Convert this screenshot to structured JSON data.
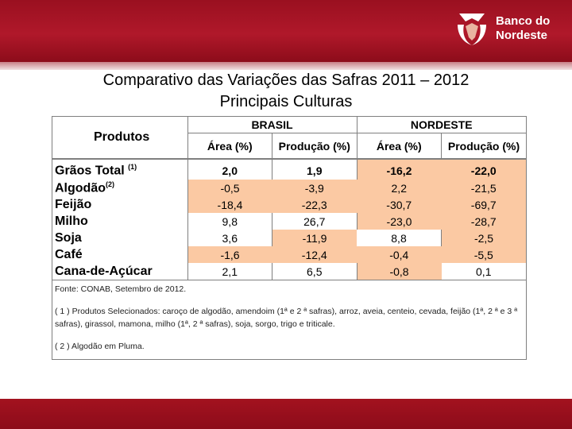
{
  "brand": {
    "name_line1": "Banco do",
    "name_line2": "Nordeste",
    "logo_color": "#ffffff"
  },
  "colors": {
    "header_red": "#a3121f",
    "highlight": "#fbc9a3"
  },
  "title_line1": "Comparativo das Variações das Safras 2011 – 2012",
  "title_line2": "Principais Culturas",
  "table": {
    "col_produtos": "Produtos",
    "group_brasil": "BRASIL",
    "group_nordeste": "NORDESTE",
    "sub_area": "Área (%)",
    "sub_producao": "Produção (%)",
    "rows": [
      {
        "label": "Grãos Total",
        "sup": "(1)",
        "br_area": "2,0",
        "br_prod": "1,9",
        "ne_area": "-16,2",
        "ne_prod": "-22,0"
      },
      {
        "label": "Algodão",
        "sup": "(2)",
        "br_area": "-0,5",
        "br_prod": "-3,9",
        "ne_area": "2,2",
        "ne_prod": "-21,5"
      },
      {
        "label": "Feijão",
        "sup": "",
        "br_area": "-18,4",
        "br_prod": "-22,3",
        "ne_area": "-30,7",
        "ne_prod": "-69,7"
      },
      {
        "label": "Milho",
        "sup": "",
        "br_area": "9,8",
        "br_prod": "26,7",
        "ne_area": "-23,0",
        "ne_prod": "-28,7"
      },
      {
        "label": "Soja",
        "sup": "",
        "br_area": "3,6",
        "br_prod": "-11,9",
        "ne_area": "8,8",
        "ne_prod": "-2,5"
      },
      {
        "label": "Café",
        "sup": "",
        "br_area": "-1,6",
        "br_prod": "-12,4",
        "ne_area": "-0,4",
        "ne_prod": "-5,5"
      },
      {
        "label": "Cana-de-Açúcar",
        "sup": "",
        "br_area": "2,1",
        "br_prod": "6,5",
        "ne_area": "-0,8",
        "ne_prod": "0,1"
      }
    ],
    "source": "Fonte: CONAB, Setembro de 2012.",
    "note1": "( 1 ) Produtos Selecionados: caroço de algodão, amendoim (1ª e 2 ª safras), arroz, aveia, centeio, cevada, feijão (1ª, 2 ª e 3 ª safras), girassol, mamona, milho (1ª, 2 ª safras), soja, sorgo, trigo e triticale.",
    "note2": "( 2 ) Algodão em Pluma."
  }
}
